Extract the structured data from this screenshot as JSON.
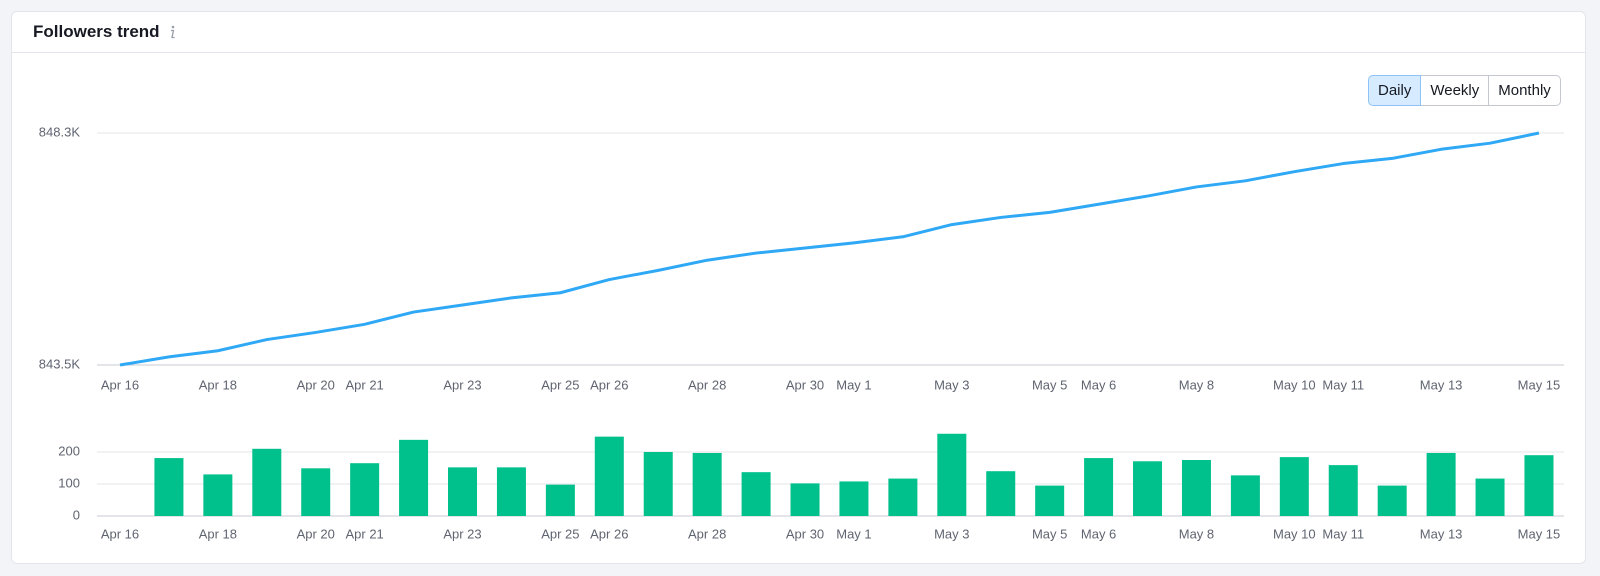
{
  "header": {
    "title": "Followers trend"
  },
  "buttons": [
    "Daily",
    "Weekly",
    "Monthly"
  ],
  "selected_button": 0,
  "chart_data": [
    {
      "type": "line",
      "color": "#2fa8f5",
      "grid": true,
      "categories": [
        "Apr 16",
        null,
        "Apr 18",
        null,
        "Apr 20",
        "Apr 21",
        null,
        "Apr 23",
        null,
        "Apr 25",
        "Apr 26",
        null,
        "Apr 28",
        null,
        "Apr 30",
        "May 1",
        null,
        "May 3",
        null,
        "May 5",
        "May 6",
        null,
        "May 8",
        null,
        "May 10",
        "May 11",
        null,
        "May 13",
        null,
        "May 15"
      ],
      "values": [
        843500,
        843668,
        843795,
        844026,
        844174,
        844342,
        844595,
        844742,
        844889,
        844995,
        845268,
        845458,
        845668,
        845816,
        845921,
        846026,
        846153,
        846405,
        846553,
        846658,
        846826,
        846995,
        847184,
        847311,
        847500,
        847668,
        847774,
        847963,
        848089,
        848300
      ],
      "ylim": [
        843500,
        848300
      ],
      "yticks": [
        {
          "value": 843500,
          "label": "843.5K"
        },
        {
          "value": 848300,
          "label": "848.3K"
        }
      ]
    },
    {
      "type": "bar",
      "color": "#00c08b",
      "grid": true,
      "categories": [
        "Apr 16",
        null,
        "Apr 18",
        null,
        "Apr 20",
        "Apr 21",
        null,
        "Apr 23",
        null,
        "Apr 25",
        "Apr 26",
        null,
        "Apr 28",
        null,
        "Apr 30",
        "May 1",
        null,
        "May 3",
        null,
        "May 5",
        "May 6",
        null,
        "May 8",
        null,
        "May 10",
        "May 11",
        null,
        "May 13",
        null,
        "May 15"
      ],
      "values": [
        null,
        181,
        130,
        210,
        149,
        165,
        238,
        152,
        152,
        98,
        248,
        200,
        197,
        137,
        102,
        108,
        117,
        257,
        140,
        95,
        181,
        171,
        175,
        127,
        184,
        159,
        95,
        197,
        117,
        190
      ],
      "ylim": [
        0,
        270
      ],
      "yticks": [
        0,
        100,
        200
      ]
    }
  ]
}
